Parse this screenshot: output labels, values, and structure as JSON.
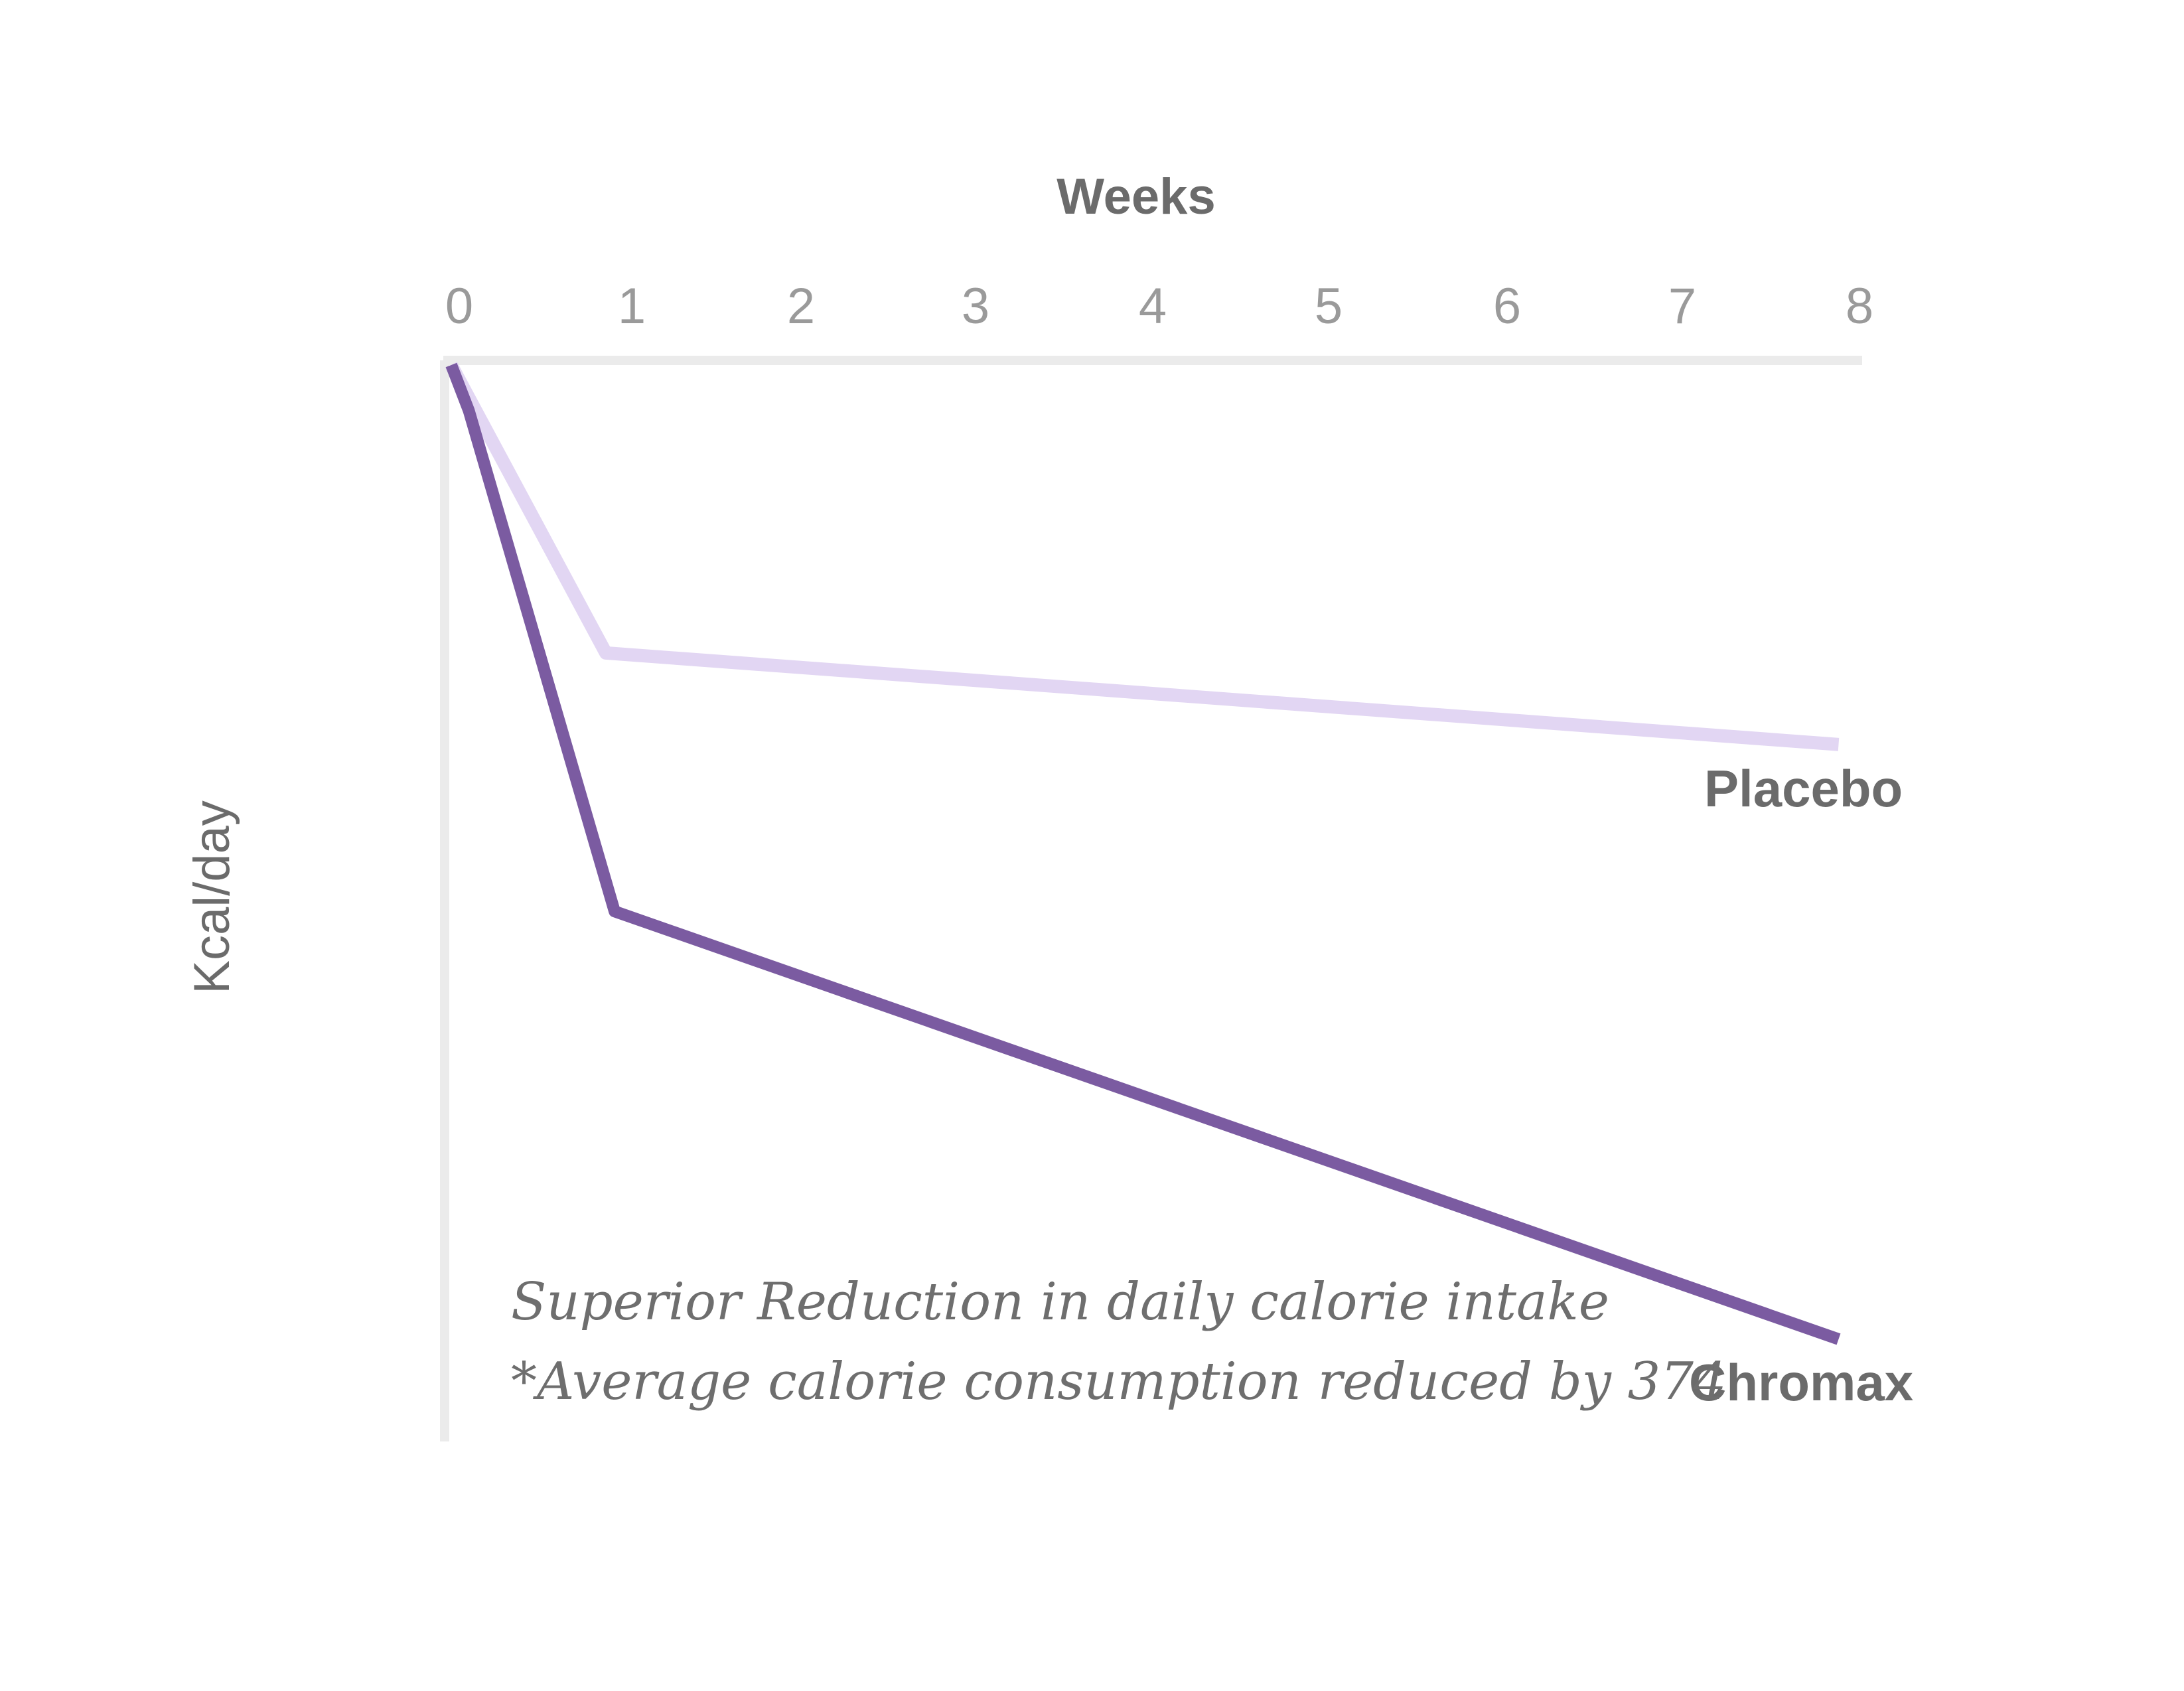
{
  "chart_data": {
    "type": "line",
    "title": "",
    "xlabel": "Weeks",
    "ylabel": "Kcal/day",
    "x_ticks": [
      "0",
      "1",
      "2",
      "3",
      "4",
      "5",
      "6",
      "7",
      "8"
    ],
    "xlim": [
      0,
      8
    ],
    "ylim": [
      -400,
      0
    ],
    "grid": false,
    "y_tick_labels_shown": false,
    "series": [
      {
        "name": "Placebo",
        "color": "#e2d6f3",
        "x": [
          0,
          0.88,
          7.9
        ],
        "y": [
          0,
          -107,
          -141
        ]
      },
      {
        "name": "Chromax",
        "color": "#7b5ba1",
        "x": [
          0,
          0.1,
          0.93,
          7.9
        ],
        "y": [
          0,
          -17,
          -203,
          -362
        ]
      }
    ],
    "annotations": [
      "Superior Reduction in daily calorie intake",
      "*Average calorie consumption reduced by 374"
    ]
  },
  "colors": {
    "axis": "#ebebeb",
    "label_text": "#6b6b6b",
    "tick_text": "#9a9a9a"
  }
}
